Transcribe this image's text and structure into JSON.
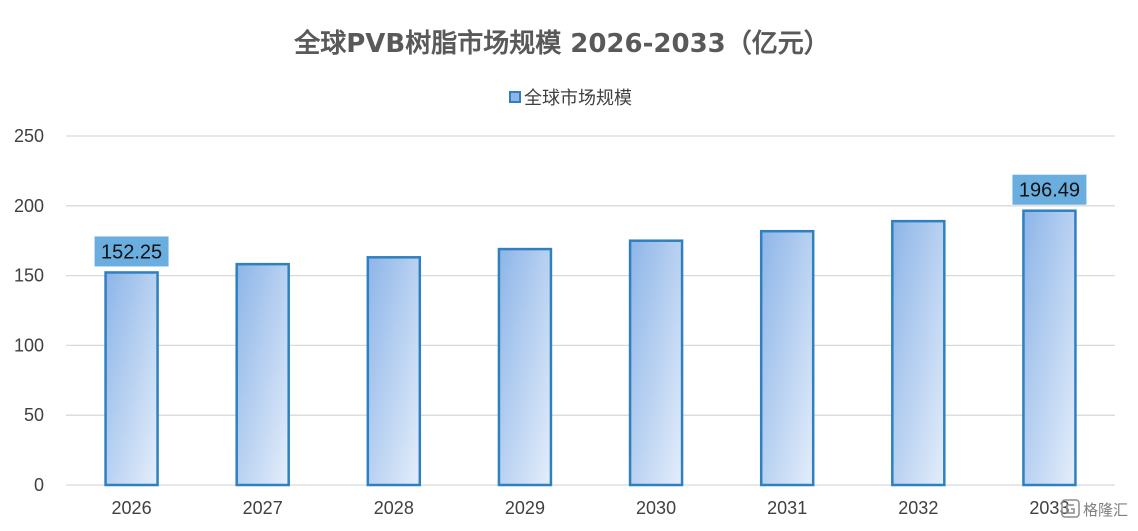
{
  "chart_data": {
    "type": "bar",
    "title": "全球PVB树脂市场规模 2026-2033（亿元）",
    "categories": [
      "2026",
      "2027",
      "2028",
      "2029",
      "2030",
      "2031",
      "2032",
      "2033"
    ],
    "series": [
      {
        "name": "全球市场规模",
        "values": [
          152.25,
          158.2,
          163.1,
          169.0,
          175.0,
          181.8,
          189.0,
          196.49
        ]
      }
    ],
    "data_labels": [
      {
        "category": "2026",
        "text": "152.25"
      },
      {
        "category": "2033",
        "text": "196.49"
      }
    ],
    "ylim": [
      0,
      250
    ],
    "yticks": [
      0,
      50,
      100,
      150,
      200,
      250
    ],
    "xlabel": "",
    "ylabel": "",
    "grid": "horizontal",
    "legend_position": "top-center",
    "colors": {
      "bar_fill_start": "#8db5e8",
      "bar_fill_end": "#e4eefb",
      "bar_stroke": "#2e80be",
      "label_background": "#6aaee0",
      "gridline": "#d9d9d9"
    }
  },
  "watermark": {
    "text": "格隆汇",
    "icon": "brand-logo-icon"
  }
}
